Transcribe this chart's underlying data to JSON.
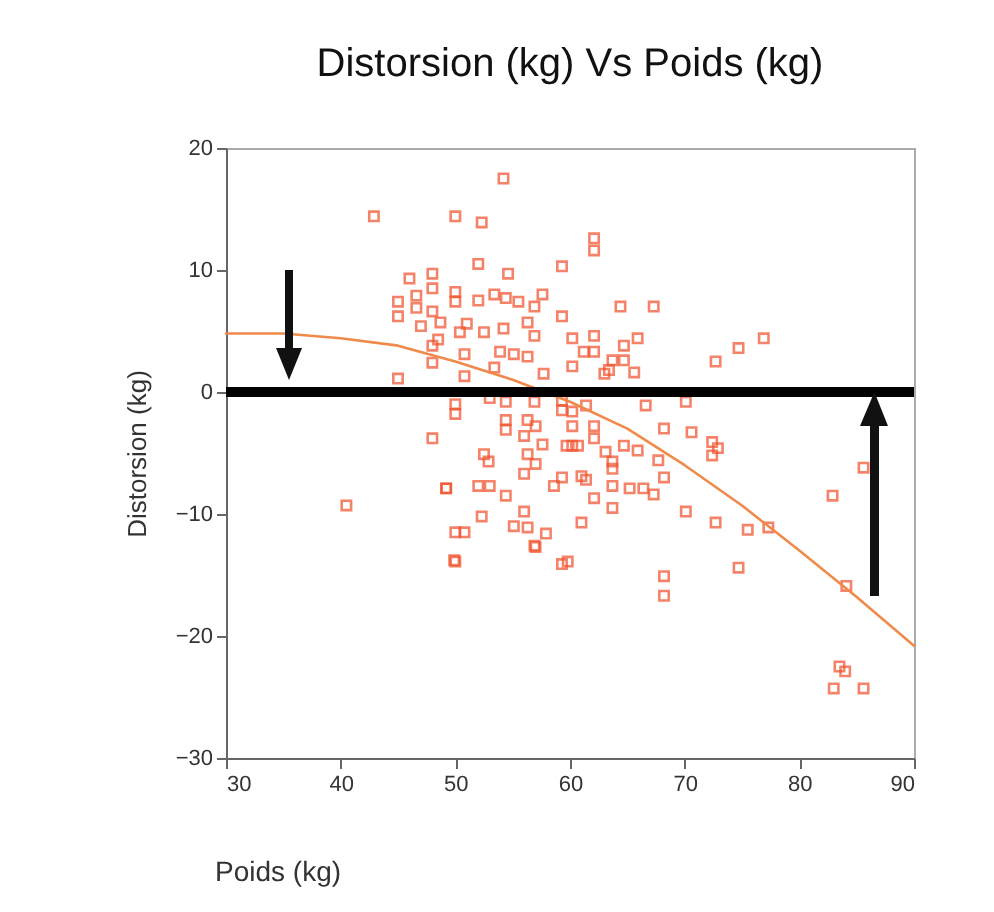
{
  "chart_data": {
    "type": "scatter",
    "title": "Distorsion (kg) Vs Poids (kg)",
    "xlabel": "Poids (kg)",
    "ylabel": "Distorsion (kg)",
    "xlim": [
      30,
      90
    ],
    "xticks": [
      30,
      40,
      50,
      60,
      70,
      80,
      90
    ],
    "ylim": [
      -30,
      20
    ],
    "yticks": [
      -30,
      -20,
      -10,
      0,
      10,
      20
    ],
    "grid": false,
    "series": [
      {
        "marker": "square",
        "color": "#f0502a",
        "x": [
          42.9,
          50,
          46,
          45,
          45,
          46.6,
          46.6,
          48,
          48,
          47,
          48,
          48.7,
          48.5,
          48,
          48,
          45,
          48,
          49.2,
          40.5,
          49.9,
          50,
          54.2,
          52.3,
          62.1,
          62.1,
          52,
          59.3,
          54.6,
          50,
          50,
          52,
          53.4,
          54.4,
          55.5,
          57.6,
          56.9,
          64.4,
          67.3,
          59.3,
          56.3,
          54.2,
          51,
          50.4,
          52.5,
          56.9,
          60.2,
          62.1,
          65.9,
          64.7,
          61.2,
          62.1,
          50.8,
          53.9,
          55.1,
          56.3,
          63.7,
          64.7,
          60.2,
          65.6,
          63.4,
          63,
          53.4,
          57.7,
          50.8,
          50,
          50,
          53,
          54.4,
          56.9,
          59.3,
          59.3,
          60.2,
          61.4,
          66.6,
          70.1,
          54.4,
          54.4,
          56.3,
          57,
          60.2,
          62.1,
          56,
          57.6,
          68.2,
          70.6,
          62.1,
          60.2,
          59.7,
          60.7,
          63.1,
          64.7,
          65.9,
          56.3,
          63.7,
          57,
          63.7,
          67.7,
          52.5,
          52.9,
          61,
          61.4,
          59.3,
          56,
          68.2,
          58.6,
          63.7,
          65.2,
          66.4,
          67.3,
          52,
          53,
          49.2,
          54.4,
          62.1,
          52.3,
          56,
          63.7,
          70.1,
          55.1,
          56.3,
          61,
          50.8,
          57.9,
          56.9,
          50,
          59.3,
          68.2,
          68.2,
          76.9,
          74.7,
          72.7,
          72.4,
          72.9,
          72.4,
          72.7,
          75.5,
          77.3,
          74.7,
          82.9,
          85.6,
          84.1,
          83.5,
          84,
          83,
          85.6,
          57,
          59.8
        ],
        "values": [
          14.4,
          14.4,
          9.3,
          7.4,
          6.2,
          7.9,
          6.9,
          9.7,
          8.5,
          5.4,
          6.6,
          5.7,
          4.3,
          3.8,
          2.4,
          1.1,
          -3.8,
          -7.9,
          -9.3,
          -13.8,
          -11.5,
          17.5,
          13.9,
          12.6,
          11.6,
          10.5,
          10.3,
          9.7,
          8.2,
          7.4,
          7.5,
          8,
          7.7,
          7.4,
          8,
          7,
          7,
          7,
          6.2,
          5.7,
          5.2,
          5.6,
          4.9,
          4.9,
          4.6,
          4.4,
          4.6,
          4.4,
          3.8,
          3.3,
          3.3,
          3.1,
          3.3,
          3.1,
          2.9,
          2.6,
          2.6,
          2.1,
          1.6,
          1.8,
          1.5,
          2,
          1.5,
          1.3,
          -1,
          -1.8,
          -0.5,
          -0.8,
          -0.8,
          -0.7,
          -1.5,
          -1.6,
          -1.1,
          -1.1,
          -0.8,
          -2.3,
          -3.1,
          -2.3,
          -2.8,
          -2.8,
          -2.8,
          -3.6,
          -4.3,
          -3,
          -3.3,
          -3.8,
          -4.4,
          -4.4,
          -4.4,
          -4.9,
          -4.4,
          -4.8,
          -5.1,
          -5.7,
          -5.9,
          -6.3,
          -5.6,
          -5.1,
          -5.7,
          -6.9,
          -7.2,
          -7,
          -6.7,
          -7,
          -7.7,
          -7.7,
          -7.9,
          -7.9,
          -8.4,
          -7.7,
          -7.7,
          -7.9,
          -8.5,
          -8.7,
          -10.2,
          -9.8,
          -9.5,
          -9.8,
          -11,
          -11.1,
          -10.7,
          -11.5,
          -11.6,
          -12.6,
          -13.9,
          -14.1,
          -15.1,
          -16.7,
          4.4,
          3.6,
          2.5,
          -4.1,
          -4.6,
          -5.2,
          -10.7,
          -11.3,
          -11.1,
          -14.4,
          -8.5,
          -6.2,
          -15.9,
          -22.5,
          -22.9,
          -24.3,
          -24.3,
          -12.7,
          -13.9
        ]
      },
      {
        "type": "line",
        "color": "#f08a4a",
        "x": [
          30,
          35,
          40,
          45,
          50,
          55,
          60,
          65,
          70,
          75,
          80,
          85,
          90
        ],
        "values": [
          4.8,
          4.8,
          4.4,
          3.8,
          2.5,
          1,
          -0.8,
          -3,
          -6,
          -9.3,
          -13,
          -16.8,
          -20.8
        ]
      }
    ],
    "ref_lines": [
      {
        "axis": "y",
        "value": 0,
        "color": "#000000"
      }
    ]
  }
}
